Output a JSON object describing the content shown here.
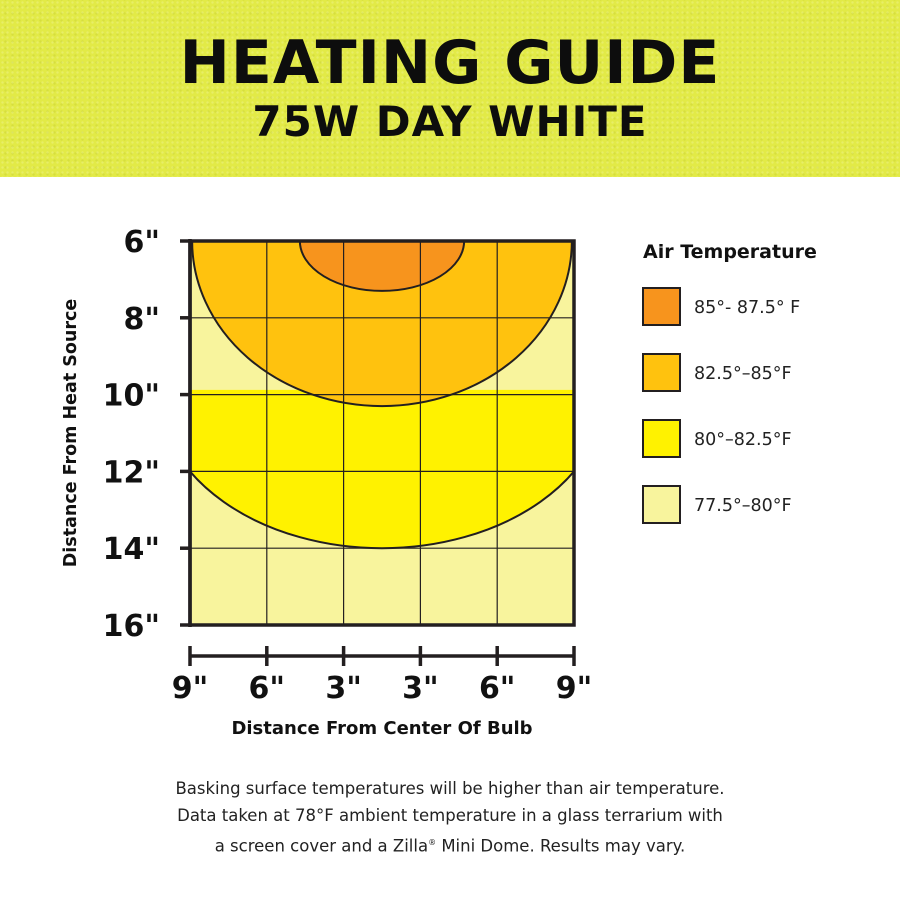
{
  "header": {
    "title": "HEATING GUIDE",
    "subtitle": "75W DAY WHITE"
  },
  "colors": {
    "banner": "#e2ea47",
    "zone_1": "#f7941d",
    "zone_2": "#ffc20e",
    "zone_3": "#fff200",
    "zone_4": "#f8f49d",
    "outline": "#231f20"
  },
  "chart_data": {
    "type": "heatmap",
    "title": "",
    "xlabel": "Distance From Center Of Bulb",
    "ylabel": "Distance From Heat Source",
    "x_ticks": [
      "9\"",
      "6\"",
      "3\"",
      "3\"",
      "6\"",
      "9\""
    ],
    "x_tick_values": [
      -9,
      -6,
      -3,
      3,
      6,
      9
    ],
    "y_ticks": [
      "6\"",
      "8\"",
      "10\"",
      "12\"",
      "14\"",
      "16\""
    ],
    "y_tick_values": [
      6,
      8,
      10,
      12,
      14,
      16
    ],
    "xlim": [
      -9,
      9
    ],
    "ylim": [
      6,
      16
    ],
    "grid": true,
    "legend": {
      "title": "Air Temperature",
      "position": "right",
      "entries": [
        {
          "label": "85°- 87.5° F",
          "color": "#f7941d"
        },
        {
          "label": "82.5°–85°F",
          "color": "#ffc20e"
        },
        {
          "label": "80°–82.5°F",
          "color": "#fff200"
        },
        {
          "label": "77.5°–80°F",
          "color": "#f8f49d"
        }
      ]
    },
    "zones": [
      {
        "range": "77.5°–80°F",
        "color": "#f8f49d",
        "boundary": "background"
      },
      {
        "range": "80°–82.5°F",
        "color": "#fff200",
        "boundary": "elliptical",
        "center_x": 0,
        "half_width": 10.5,
        "max_depth": 14,
        "edge_depth": 12
      },
      {
        "range": "82.5°–85°F",
        "color": "#ffc20e",
        "boundary": "elliptical",
        "center_x": 0,
        "half_width": 8.9,
        "max_depth": 10.3,
        "edge_depth": 6
      },
      {
        "range": "85°- 87.5° F",
        "color": "#f7941d",
        "boundary": "elliptical",
        "center_x": 0,
        "half_width": 3.85,
        "max_depth": 7.3,
        "edge_depth": 6
      }
    ]
  },
  "footnote": {
    "line1": "Basking surface temperatures will be higher than air temperature.",
    "line2": "Data taken at 78°F ambient temperature in a glass terrarium with",
    "line3_pre": "a screen cover and a Zilla",
    "line3_reg": "®",
    "line3_post": " Mini Dome. Results may vary."
  }
}
